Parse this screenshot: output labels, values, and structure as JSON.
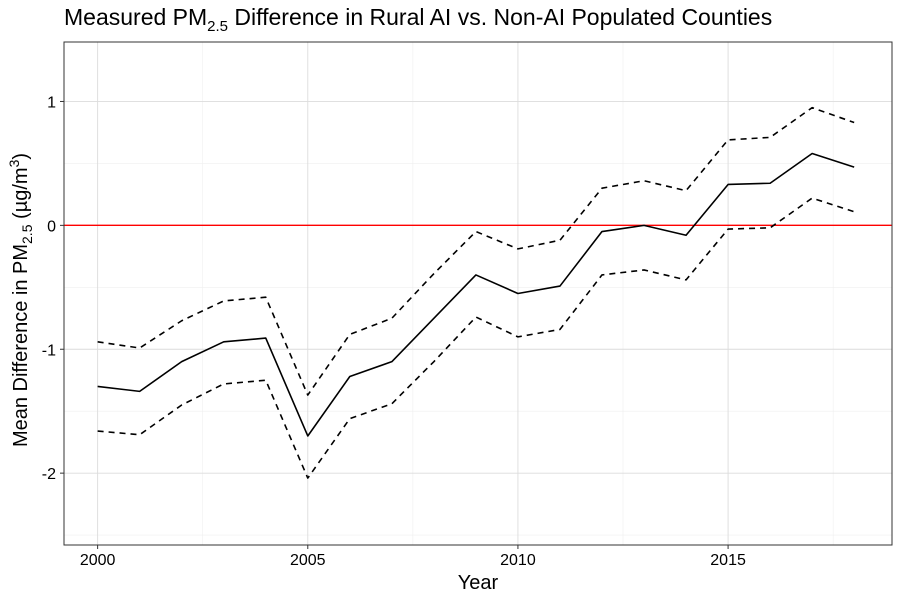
{
  "chart_data": {
    "type": "line",
    "title": {
      "prefix": "Measured PM",
      "subscript": "2.5",
      "suffix": " Difference in Rural AI vs. Non-AI Populated Counties"
    },
    "xlabel": "Year",
    "ylabel": {
      "prefix": "Mean Difference in PM",
      "subscript": "2.5",
      "middle": " (µg/m",
      "superscript": "3",
      "suffix": ")"
    },
    "xlim": [
      1999.2,
      2018.9
    ],
    "ylim": [
      -2.58,
      1.48
    ],
    "xticks": [
      2000,
      2005,
      2010,
      2015
    ],
    "xtick_labels": [
      "2000",
      "2005",
      "2010",
      "2015"
    ],
    "yticks": [
      1,
      0,
      -1,
      -2
    ],
    "ytick_labels": [
      "1",
      "0",
      "-1",
      "-2"
    ],
    "grid": true,
    "x": [
      2000,
      2001,
      2002,
      2003,
      2004,
      2005,
      2006,
      2007,
      2008,
      2009,
      2010,
      2011,
      2012,
      2013,
      2014,
      2015,
      2016,
      2017,
      2018
    ],
    "series": [
      {
        "style": "solid",
        "color": "#000000",
        "values": [
          -1.3,
          -1.34,
          -1.1,
          -0.94,
          -0.91,
          -1.7,
          -1.22,
          -1.1,
          -0.75,
          -0.4,
          -0.55,
          -0.49,
          -0.05,
          0.0,
          -0.08,
          0.33,
          0.34,
          0.58,
          0.47
        ]
      },
      {
        "style": "dashed",
        "color": "#000000",
        "values": [
          -0.94,
          -0.99,
          -0.77,
          -0.61,
          -0.58,
          -1.37,
          -0.88,
          -0.75,
          -0.39,
          -0.05,
          -0.19,
          -0.12,
          0.3,
          0.36,
          0.28,
          0.69,
          0.71,
          0.95,
          0.83
        ]
      },
      {
        "style": "dashed",
        "color": "#000000",
        "values": [
          -1.66,
          -1.69,
          -1.45,
          -1.28,
          -1.25,
          -2.04,
          -1.56,
          -1.44,
          -1.1,
          -0.74,
          -0.9,
          -0.84,
          -0.4,
          -0.36,
          -0.44,
          -0.03,
          -0.02,
          0.22,
          0.11
        ]
      }
    ],
    "reference_line": {
      "y": 0,
      "color": "#ff0000"
    }
  }
}
